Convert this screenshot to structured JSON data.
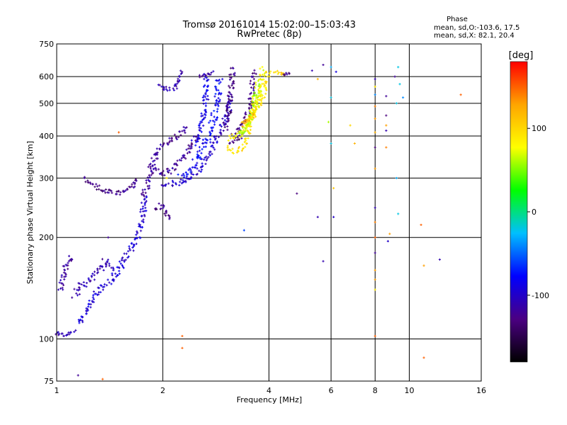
{
  "chart_data": {
    "type": "scatter",
    "title": "Tromsø 20161014 15:02:00–15:03:43",
    "subtitle": "RwPretec (8p)",
    "xlabel": "Frequency [MHz]",
    "ylabel": "Stationary phase Virtual Height [km]",
    "x_scale": "log",
    "y_scale": "log",
    "xlim": [
      1,
      16
    ],
    "ylim": [
      75,
      750
    ],
    "x_ticks": [
      1,
      2,
      4,
      6,
      8,
      10,
      16
    ],
    "y_ticks": [
      75,
      100,
      200,
      300,
      400,
      500,
      600,
      750
    ],
    "x_gridlines": [
      2,
      4,
      6,
      8,
      10
    ],
    "y_gridlines": [
      100,
      200,
      300,
      400,
      500,
      600
    ],
    "grid": true,
    "phase_box": {
      "title": "Phase",
      "line1": "mean, sd,O:-103.6, 17.5",
      "line2": "mean, sd,X:  82.1, 20.4"
    },
    "colorbar": {
      "label": "[deg]",
      "range": [
        -180,
        180
      ],
      "ticks": [
        {
          "value": 100,
          "label": "100"
        },
        {
          "value": 0,
          "label": "0"
        },
        {
          "value": -100,
          "label": "-100"
        }
      ],
      "colors": [
        "#000000",
        "#4b0082",
        "#0000ff",
        "#00bfff",
        "#00ff00",
        "#ffff00",
        "#ffa500",
        "#ff0000"
      ]
    },
    "traces": [
      {
        "phase": -115,
        "spread": 4,
        "points": [
          [
            1.02,
            140
          ],
          [
            1.04,
            152
          ],
          [
            1.06,
            162
          ],
          [
            1.08,
            170
          ],
          [
            1.1,
            178
          ]
        ]
      },
      {
        "phase": -110,
        "spread": 3,
        "points": [
          [
            1.0,
            105
          ],
          [
            1.03,
            103
          ],
          [
            1.06,
            103
          ],
          [
            1.1,
            104
          ],
          [
            1.13,
            106
          ]
        ]
      },
      {
        "phase": -95,
        "spread": 4,
        "points": [
          [
            1.16,
            110
          ],
          [
            1.2,
            118
          ],
          [
            1.25,
            130
          ],
          [
            1.3,
            138
          ],
          [
            1.38,
            145
          ],
          [
            1.45,
            152
          ],
          [
            1.5,
            160
          ],
          [
            1.55,
            170
          ],
          [
            1.6,
            180
          ],
          [
            1.65,
            190
          ],
          [
            1.7,
            203
          ],
          [
            1.73,
            215
          ],
          [
            1.75,
            230
          ],
          [
            1.77,
            248
          ],
          [
            1.78,
            265
          ]
        ]
      },
      {
        "phase": -112,
        "spread": 5,
        "points": [
          [
            1.12,
            135
          ],
          [
            1.18,
            145
          ],
          [
            1.25,
            152
          ],
          [
            1.32,
            160
          ],
          [
            1.38,
            170
          ],
          [
            1.45,
            160
          ]
        ]
      },
      {
        "phase": -125,
        "spread": 3,
        "points": [
          [
            1.2,
            298
          ],
          [
            1.28,
            285
          ],
          [
            1.36,
            275
          ],
          [
            1.44,
            272
          ],
          [
            1.52,
            271
          ],
          [
            1.6,
            278
          ],
          [
            1.66,
            288
          ],
          [
            1.7,
            300
          ]
        ]
      },
      {
        "phase": -118,
        "spread": 4,
        "points": [
          [
            1.76,
            262
          ],
          [
            1.8,
            285
          ],
          [
            1.84,
            310
          ],
          [
            1.88,
            335
          ],
          [
            1.92,
            355
          ],
          [
            1.96,
            370
          ],
          [
            2.0,
            375
          ],
          [
            2.04,
            380
          ],
          [
            2.08,
            385
          ],
          [
            2.12,
            390
          ],
          [
            2.16,
            395
          ],
          [
            2.2,
            400
          ],
          [
            2.25,
            410
          ],
          [
            2.3,
            420
          ],
          [
            2.35,
            428
          ]
        ]
      },
      {
        "phase": -120,
        "spread": 4,
        "points": [
          [
            1.85,
            325
          ],
          [
            1.95,
            315
          ],
          [
            2.05,
            310
          ],
          [
            2.15,
            320
          ],
          [
            2.25,
            340
          ],
          [
            2.35,
            360
          ],
          [
            2.45,
            380
          ],
          [
            2.5,
            400
          ]
        ]
      },
      {
        "phase": -128,
        "spread": 3,
        "points": [
          [
            1.9,
            240
          ],
          [
            1.98,
            250
          ],
          [
            2.05,
            235
          ],
          [
            2.12,
            225
          ]
        ]
      },
      {
        "phase": -100,
        "spread": 4,
        "points": [
          [
            2.0,
            290
          ],
          [
            2.1,
            288
          ],
          [
            2.2,
            290
          ],
          [
            2.3,
            295
          ],
          [
            2.42,
            305
          ],
          [
            2.55,
            320
          ],
          [
            2.65,
            340
          ],
          [
            2.75,
            360
          ],
          [
            2.82,
            385
          ],
          [
            2.9,
            410
          ],
          [
            2.98,
            440
          ],
          [
            3.05,
            470
          ],
          [
            3.1,
            500
          ],
          [
            3.14,
            530
          ]
        ]
      },
      {
        "phase": -80,
        "spread": 5,
        "points": [
          [
            2.25,
            300
          ],
          [
            2.4,
            320
          ],
          [
            2.52,
            345
          ],
          [
            2.62,
            372
          ],
          [
            2.7,
            400
          ],
          [
            2.76,
            430
          ],
          [
            2.8,
            460
          ],
          [
            2.83,
            490
          ],
          [
            2.86,
            520
          ],
          [
            2.88,
            560
          ],
          [
            2.9,
            600
          ]
        ]
      },
      {
        "phase": -88,
        "spread": 4,
        "points": [
          [
            2.45,
            380
          ],
          [
            2.55,
            410
          ],
          [
            2.6,
            450
          ],
          [
            2.63,
            490
          ],
          [
            2.65,
            530
          ],
          [
            2.66,
            570
          ],
          [
            2.67,
            610
          ]
        ]
      },
      {
        "phase": -112,
        "spread": 3,
        "points": [
          [
            1.95,
            560
          ],
          [
            2.02,
            555
          ],
          [
            2.1,
            550
          ],
          [
            2.18,
            560
          ],
          [
            2.22,
            590
          ],
          [
            2.25,
            625
          ]
        ]
      },
      {
        "phase": -115,
        "spread": 2,
        "points": [
          [
            2.55,
            600
          ],
          [
            2.62,
            610
          ],
          [
            2.7,
            605
          ],
          [
            2.78,
            620
          ]
        ]
      },
      {
        "phase": -130,
        "spread": 4,
        "points": [
          [
            3.0,
            420
          ],
          [
            3.05,
            450
          ],
          [
            3.08,
            480
          ],
          [
            3.1,
            520
          ],
          [
            3.12,
            560
          ],
          [
            3.14,
            600
          ],
          [
            3.15,
            640
          ]
        ]
      },
      {
        "phase": -125,
        "spread": 4,
        "points": [
          [
            3.15,
            410
          ],
          [
            3.25,
            420
          ],
          [
            3.35,
            435
          ],
          [
            3.45,
            455
          ],
          [
            3.5,
            480
          ],
          [
            3.55,
            510
          ],
          [
            3.58,
            550
          ],
          [
            3.6,
            590
          ],
          [
            3.62,
            630
          ]
        ]
      },
      {
        "phase": -135,
        "spread": 3,
        "points": [
          [
            3.1,
            380
          ],
          [
            3.2,
            390
          ],
          [
            3.3,
            395
          ],
          [
            3.4,
            405
          ]
        ]
      },
      {
        "phase": 95,
        "spread": 3,
        "points": [
          [
            3.05,
            370
          ],
          [
            3.12,
            362
          ],
          [
            3.2,
            360
          ],
          [
            3.28,
            362
          ],
          [
            3.36,
            370
          ],
          [
            3.42,
            385
          ],
          [
            3.48,
            405
          ],
          [
            3.52,
            430
          ],
          [
            3.55,
            455
          ]
        ]
      },
      {
        "phase": 82,
        "spread": 4,
        "points": [
          [
            3.05,
            395
          ],
          [
            3.15,
            398
          ],
          [
            3.28,
            402
          ],
          [
            3.38,
            415
          ],
          [
            3.48,
            430
          ],
          [
            3.55,
            450
          ],
          [
            3.6,
            470
          ],
          [
            3.62,
            500
          ],
          [
            3.64,
            530
          ]
        ]
      },
      {
        "phase": 60,
        "spread": 4,
        "points": [
          [
            3.3,
            400
          ],
          [
            3.42,
            420
          ],
          [
            3.52,
            445
          ],
          [
            3.6,
            475
          ],
          [
            3.66,
            500
          ],
          [
            3.7,
            540
          ],
          [
            3.72,
            580
          ]
        ]
      },
      {
        "phase": 78,
        "spread": 4,
        "points": [
          [
            3.45,
            430
          ],
          [
            3.55,
            450
          ],
          [
            3.65,
            470
          ],
          [
            3.72,
            490
          ],
          [
            3.78,
            520
          ],
          [
            3.8,
            560
          ],
          [
            3.82,
            600
          ],
          [
            3.84,
            640
          ]
        ]
      },
      {
        "phase": 90,
        "spread": 4,
        "points": [
          [
            3.6,
            460
          ],
          [
            3.7,
            480
          ],
          [
            3.78,
            505
          ],
          [
            3.85,
            530
          ],
          [
            3.9,
            565
          ],
          [
            3.95,
            600
          ],
          [
            3.98,
            630
          ]
        ]
      },
      {
        "phase": 120,
        "spread": 3,
        "points": [
          [
            3.35,
            430
          ],
          [
            3.45,
            445
          ],
          [
            3.55,
            455
          ],
          [
            3.65,
            465
          ]
        ]
      },
      {
        "phase": 105,
        "spread": 3,
        "points": [
          [
            4.15,
            610
          ],
          [
            4.25,
            620
          ],
          [
            4.35,
            612
          ],
          [
            4.45,
            606
          ]
        ]
      },
      {
        "phase": -125,
        "spread": 2,
        "points": [
          [
            4.4,
            605
          ],
          [
            4.5,
            615
          ],
          [
            4.6,
            610
          ]
        ]
      }
    ],
    "scatter_points": [
      [
        5.3,
        625,
        -110
      ],
      [
        5.5,
        590,
        120
      ],
      [
        5.7,
        650,
        -120
      ],
      [
        6.0,
        640,
        -30
      ],
      [
        6.2,
        620,
        -90
      ],
      [
        6.0,
        520,
        -20
      ],
      [
        5.9,
        440,
        60
      ],
      [
        6.0,
        380,
        -20
      ],
      [
        6.8,
        430,
        100
      ],
      [
        7.0,
        380,
        120
      ],
      [
        5.5,
        230,
        -110
      ],
      [
        6.1,
        230,
        -100
      ],
      [
        6.1,
        280,
        110
      ],
      [
        3.4,
        210,
        -60
      ],
      [
        4.8,
        270,
        -130
      ],
      [
        5.7,
        170,
        -110
      ],
      [
        8.0,
        590,
        -110
      ],
      [
        8.0,
        560,
        90
      ],
      [
        8.0,
        530,
        -40
      ],
      [
        8.0,
        490,
        140
      ],
      [
        8.0,
        450,
        130
      ],
      [
        8.0,
        410,
        120
      ],
      [
        8.0,
        370,
        -130
      ],
      [
        8.0,
        320,
        130
      ],
      [
        8.0,
        245,
        -110
      ],
      [
        8.0,
        222,
        140
      ],
      [
        8.0,
        200,
        150
      ],
      [
        8.0,
        180,
        -120
      ],
      [
        8.0,
        160,
        130
      ],
      [
        8.0,
        150,
        130
      ],
      [
        8.0,
        140,
        90
      ],
      [
        8.0,
        102,
        150
      ],
      [
        8.6,
        525,
        -120
      ],
      [
        8.6,
        460,
        -130
      ],
      [
        8.6,
        430,
        130
      ],
      [
        8.6,
        415,
        -110
      ],
      [
        8.6,
        370,
        140
      ],
      [
        8.8,
        205,
        130
      ],
      [
        8.7,
        195,
        -100
      ],
      [
        9.1,
        600,
        -120
      ],
      [
        9.2,
        500,
        -20
      ],
      [
        9.3,
        640,
        -20
      ],
      [
        9.4,
        570,
        -20
      ],
      [
        9.6,
        520,
        -40
      ],
      [
        9.2,
        300,
        -30
      ],
      [
        9.3,
        235,
        -20
      ],
      [
        10.8,
        218,
        150
      ],
      [
        11.0,
        165,
        130
      ],
      [
        12.2,
        172,
        -110
      ],
      [
        14.0,
        530,
        150
      ],
      [
        11.0,
        88,
        150
      ],
      [
        1.35,
        76,
        150
      ],
      [
        1.5,
        410,
        150
      ],
      [
        1.15,
        78,
        -120
      ],
      [
        2.27,
        102,
        150
      ],
      [
        2.27,
        94,
        150
      ],
      [
        2.05,
        300,
        90
      ],
      [
        1.4,
        200,
        -120
      ]
    ]
  }
}
